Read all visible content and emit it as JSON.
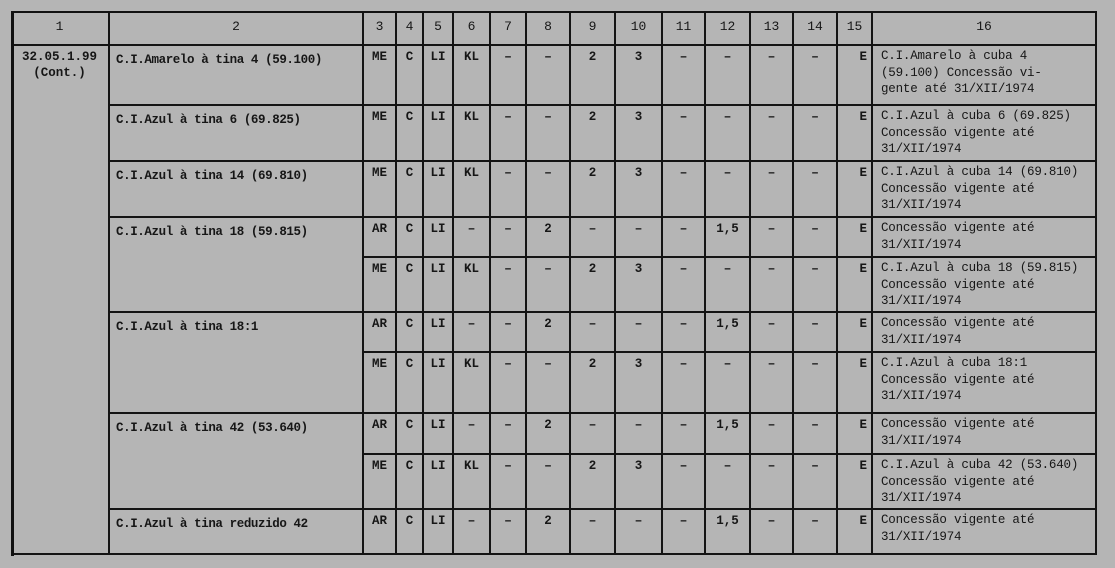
{
  "headers": [
    "1",
    "2",
    "3",
    "4",
    "5",
    "6",
    "7",
    "8",
    "9",
    "10",
    "11",
    "12",
    "13",
    "14",
    "15",
    "16"
  ],
  "code": {
    "line1": "32.05.1.99",
    "line2": "(Cont.)"
  },
  "groups": [
    {
      "name": "C.I.Amarelo à tina 4 (59.100)",
      "rows": [
        [
          "ME",
          "C",
          "LI",
          "KL",
          "–",
          "–",
          "2",
          "3",
          "–",
          "–",
          "–",
          "–",
          "E",
          "C.I.Amarelo à cuba 4\n(59.100)  Concessão vi-\ngente até 31/XII/1974"
        ]
      ]
    },
    {
      "name": "C.I.Azul à tina 6 (69.825)",
      "rows": [
        [
          "ME",
          "C",
          "LI",
          "KL",
          "–",
          "–",
          "2",
          "3",
          "–",
          "–",
          "–",
          "–",
          "E",
          "C.I.Azul à cuba 6 (69.825)\nConcessão vigente até\n31/XII/1974"
        ]
      ]
    },
    {
      "name": "C.I.Azul à tina 14 (69.810)",
      "rows": [
        [
          "ME",
          "C",
          "LI",
          "KL",
          "–",
          "–",
          "2",
          "3",
          "–",
          "–",
          "–",
          "–",
          "E",
          "C.I.Azul à cuba 14 (69.810)\nConcessão vigente até\n31/XII/1974"
        ]
      ]
    },
    {
      "name": "C.I.Azul à tina 18 (59.815)",
      "rows": [
        [
          "AR",
          "C",
          "LI",
          "–",
          "–",
          "2",
          "–",
          "–",
          "–",
          "1,5",
          "–",
          "–",
          "E",
          "Concessão vigente até\n31/XII/1974"
        ],
        [
          "ME",
          "C",
          "LI",
          "KL",
          "–",
          "–",
          "2",
          "3",
          "–",
          "–",
          "–",
          "–",
          "E",
          "C.I.Azul à cuba 18 (59.815)\nConcessão vigente até\n31/XII/1974"
        ]
      ]
    },
    {
      "name": "C.I.Azul à tina 18:1",
      "rows": [
        [
          "AR",
          "C",
          "LI",
          "–",
          "–",
          "2",
          "–",
          "–",
          "–",
          "1,5",
          "–",
          "–",
          "E",
          "Concessão vigente até\n31/XII/1974"
        ],
        [
          "ME",
          "C",
          "LI",
          "KL",
          "–",
          "–",
          "2",
          "3",
          "–",
          "–",
          "–",
          "–",
          "E",
          "C.I.Azul à cuba 18:1\nConcessão vigente até\n31/XII/1974"
        ]
      ]
    },
    {
      "name": "C.I.Azul à tina 42 (53.640)",
      "rows": [
        [
          "AR",
          "C",
          "LI",
          "–",
          "–",
          "2",
          "–",
          "–",
          "–",
          "1,5",
          "–",
          "–",
          "E",
          "Concessão vigente até\n31/XII/1974"
        ],
        [
          "ME",
          "C",
          "LI",
          "KL",
          "–",
          "–",
          "2",
          "3",
          "–",
          "–",
          "–",
          "–",
          "E",
          "C.I.Azul à cuba 42 (53.640)\nConcessão vigente até\n31/XII/1974"
        ]
      ]
    },
    {
      "name": "C.I.Azul à tina reduzido 42",
      "rows": [
        [
          "AR",
          "C",
          "LI",
          "–",
          "–",
          "2",
          "–",
          "–",
          "–",
          "1,5",
          "–",
          "–",
          "E",
          "Concessão vigente até\n31/XII/1974"
        ]
      ]
    }
  ]
}
